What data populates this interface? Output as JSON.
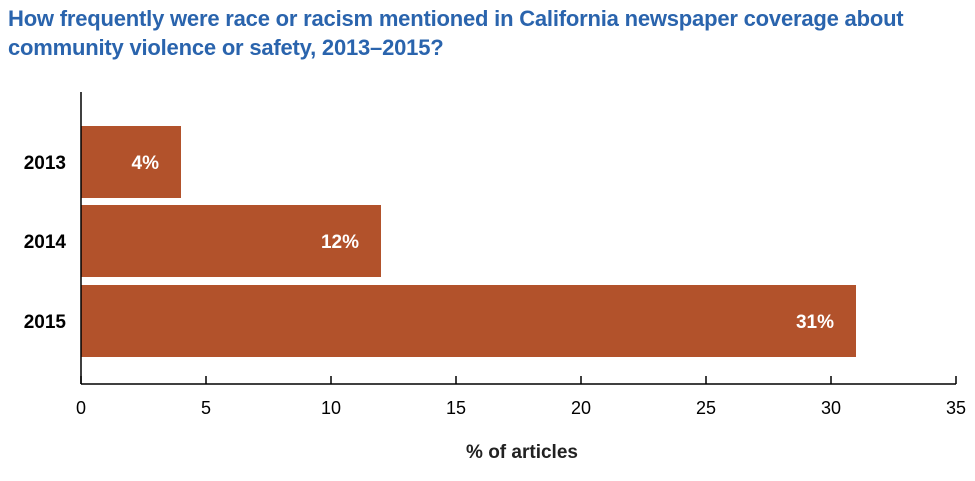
{
  "colors": {
    "title": "#2a64ad",
    "bar": "#b2522b",
    "axis": "#000000"
  },
  "chart_data": {
    "type": "bar",
    "orientation": "horizontal",
    "title": "How frequently were race or racism mentioned in California newspaper coverage about community violence or safety, 2013–2015?",
    "categories": [
      "2013",
      "2014",
      "2015"
    ],
    "values": [
      4,
      12,
      31
    ],
    "data_labels": [
      "4%",
      "12%",
      "31%"
    ],
    "xlabel": "% of articles",
    "ylabel": "",
    "xlim": [
      0,
      35
    ],
    "xticks": [
      0,
      5,
      10,
      15,
      20,
      25,
      30,
      35
    ],
    "grid": false,
    "legend": "none"
  }
}
